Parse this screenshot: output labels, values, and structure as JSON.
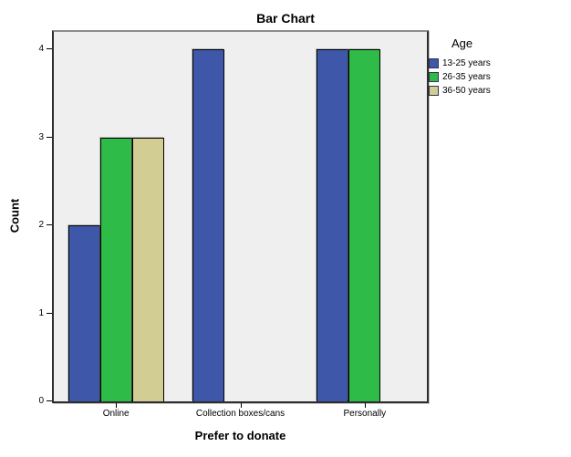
{
  "chart_data": {
    "type": "bar",
    "title": "Bar Chart",
    "xlabel": "Prefer to donate",
    "ylabel": "Count",
    "categories": [
      "Online",
      "Collection boxes/cans",
      "Personally"
    ],
    "series": [
      {
        "name": "13-25 years",
        "color": "#3E57A8",
        "values": [
          2,
          4,
          4
        ]
      },
      {
        "name": "26-35 years",
        "color": "#2EBB48",
        "values": [
          3,
          0,
          4
        ]
      },
      {
        "name": "36-50 years",
        "color": "#D1CD93",
        "values": [
          3,
          0,
          0
        ]
      }
    ],
    "ylim": [
      0,
      4.2
    ],
    "yticks": [
      "0",
      "1",
      "2",
      "3",
      "4"
    ],
    "legend_title": "Age",
    "legend_position": "right",
    "grid": false,
    "plot_background": "#efefef",
    "bar_border_color": "#000000",
    "zero_bars_hidden": true
  }
}
